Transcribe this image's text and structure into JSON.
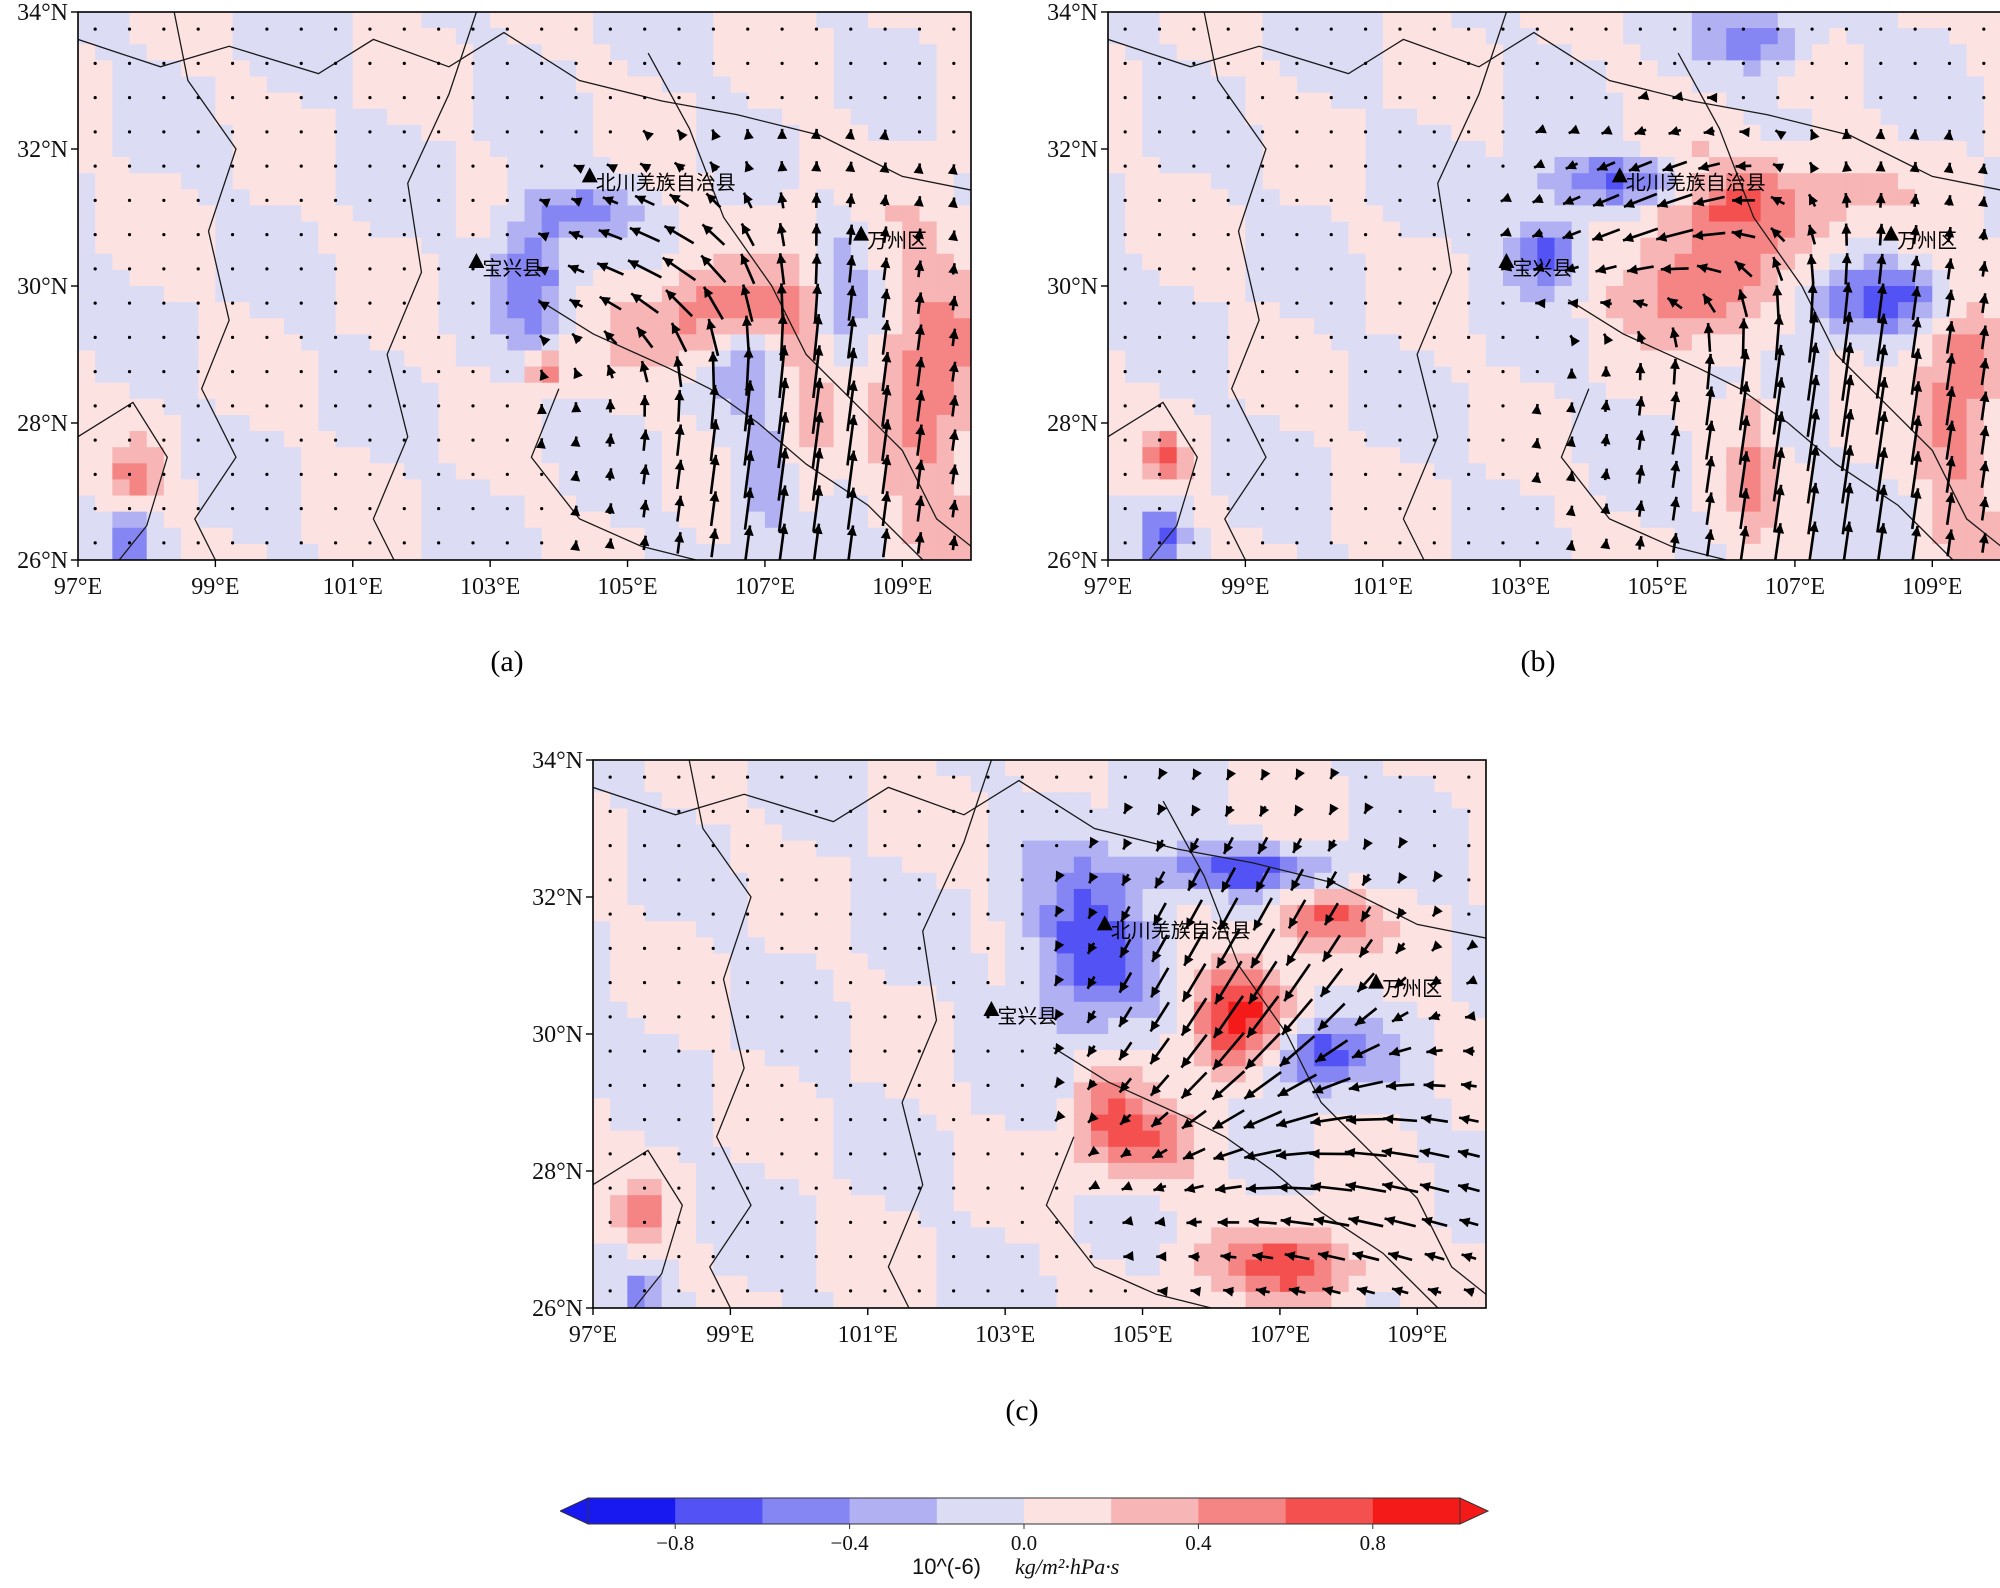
{
  "panels": [
    {
      "id": "a",
      "caption": "(a)",
      "variant": 0
    },
    {
      "id": "b",
      "caption": "(b)",
      "variant": 1
    },
    {
      "id": "c",
      "caption": "(c)",
      "variant": 2
    }
  ],
  "axes": {
    "lon_ticks": [
      "97°E",
      "99°E",
      "101°E",
      "103°E",
      "105°E",
      "107°E",
      "109°E"
    ],
    "lat_ticks": [
      "34°N",
      "32°N",
      "30°N",
      "28°N",
      "26°N"
    ],
    "lon_range": [
      97,
      110
    ],
    "lat_range": [
      26,
      34
    ]
  },
  "places": [
    {
      "name": "北川羌族自治县",
      "lon": 104.45,
      "lat": 31.6
    },
    {
      "name": "宝兴县",
      "lon": 102.8,
      "lat": 30.35
    },
    {
      "name": "万州区",
      "lon": 108.4,
      "lat": 30.75
    }
  ],
  "colorbar": {
    "levels": [
      -1.0,
      -0.8,
      -0.6,
      -0.4,
      -0.2,
      0.0,
      0.2,
      0.4,
      0.6,
      0.8,
      1.0
    ],
    "colors": [
      "#1818f0",
      "#5353f5",
      "#8585f3",
      "#b0b0f2",
      "#dcdcf5",
      "#fde2e2",
      "#f7b5b5",
      "#f58585",
      "#f55050",
      "#f51a1a"
    ],
    "tick_labels": [
      "−0.8",
      "−0.4",
      "0.0",
      "0.4",
      "0.8"
    ],
    "unit_prefix": "10^(-6)",
    "unit": "kg/m²·hPa·s"
  }
}
